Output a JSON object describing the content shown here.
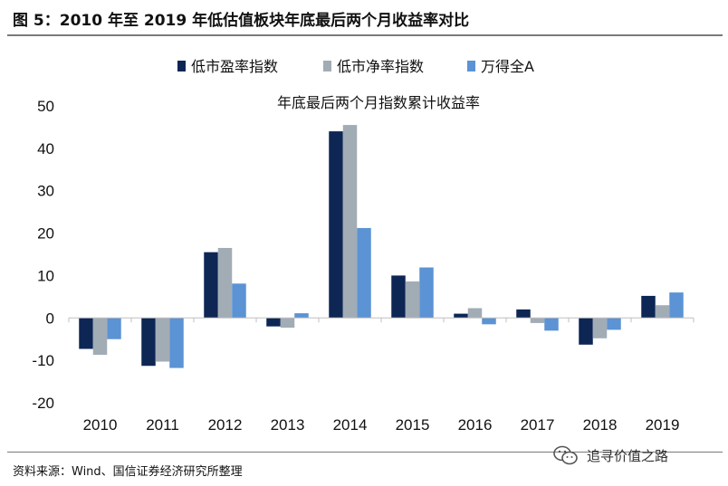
{
  "figure": {
    "title": "图 5：2010 年至 2019 年低估值板块年底最后两个月收益率对比",
    "source": "资料来源：Wind、国信证券经济研究所整理",
    "watermark": "追寻价值之路"
  },
  "chart_data": {
    "type": "bar",
    "title": "年底最后两个月指数累计收益率",
    "categories": [
      "2010",
      "2011",
      "2012",
      "2013",
      "2014",
      "2015",
      "2016",
      "2017",
      "2018",
      "2019"
    ],
    "series": [
      {
        "name": "低市盈率指数",
        "color": "#0d2654",
        "values": [
          -7.3,
          -11.3,
          15.5,
          -2.0,
          44.0,
          10.0,
          1.0,
          2.0,
          -6.3,
          5.2
        ]
      },
      {
        "name": "低市净率指数",
        "color": "#a2acb5",
        "values": [
          -8.7,
          -10.3,
          16.5,
          -2.3,
          45.5,
          8.6,
          2.3,
          -1.2,
          -4.8,
          3.0
        ]
      },
      {
        "name": "万得全A",
        "color": "#5b93d4",
        "values": [
          -5.0,
          -11.8,
          8.1,
          1.1,
          21.2,
          11.9,
          -1.5,
          -3.0,
          -2.8,
          6.0
        ]
      }
    ],
    "yticks": [
      50,
      40,
      30,
      20,
      10,
      0,
      -10,
      -20
    ],
    "ylim": [
      -20,
      50
    ],
    "xlabel": "",
    "ylabel": "",
    "grid": false,
    "legend_position": "top-center"
  }
}
